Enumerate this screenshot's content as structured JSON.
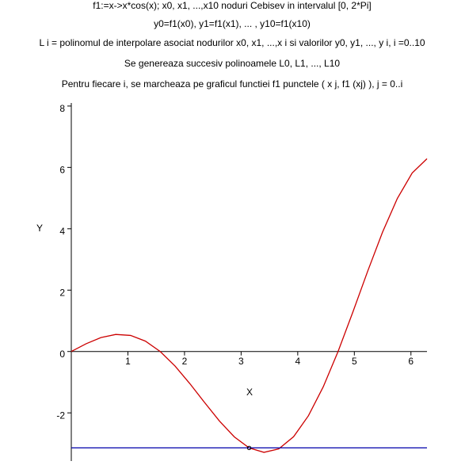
{
  "chart_data": {
    "type": "line",
    "title_lines": [
      "f1:=x->x*cos(x); x0,  x1,  ...,x10 noduri Cebisev in intervalul [0, 2*Pi]",
      "y0=f1(x0), y1=f1(x1), ... , y10=f1(x10)",
      "L i = polinomul de interpolare asociat nodurilor x0,  x1,  ...,x i si valorilor y0,  y1,  ..., y i,  i =0..10",
      "Se genereaza succesiv polinoamele L0, L1, ..., L10",
      "Pentru fiecare i, se marcheaza pe graficul functiei f1 punctele ( x j, f1 (xj) ),  j = 0..i"
    ],
    "xlabel": "X",
    "ylabel": "Y",
    "xlim": [
      0,
      6.2832
    ],
    "ylim": [
      -3.57,
      8.1
    ],
    "xticks": [
      1,
      2,
      3,
      4,
      5,
      6
    ],
    "yticks": [
      -2,
      0,
      2,
      4,
      6,
      8
    ],
    "series": [
      {
        "color": "#cc0000",
        "x": [
          0,
          0.2618,
          0.5236,
          0.7854,
          1.0472,
          1.309,
          1.5708,
          1.8326,
          2.0944,
          2.3562,
          2.618,
          2.8798,
          3.1416,
          3.4034,
          3.6652,
          3.927,
          4.1888,
          4.4506,
          4.7124,
          4.9742,
          5.236,
          5.4978,
          5.7596,
          6.0214,
          6.2832
        ],
        "values": [
          0,
          0.2529,
          0.4534,
          0.5554,
          0.5236,
          0.3388,
          0,
          -0.4743,
          -1.0472,
          -1.6661,
          -2.2672,
          -2.7817,
          -3.1416,
          -3.2874,
          -3.1742,
          -2.7768,
          -2.0944,
          -1.1518,
          0,
          1.2874,
          2.618,
          3.8875,
          4.9879,
          5.8161,
          6.2832
        ]
      },
      {
        "color": "#0000aa",
        "x": [
          0,
          6.2832
        ],
        "values": [
          -3.1416,
          -3.1416
        ]
      }
    ],
    "points": {
      "color": "#000000",
      "x": [
        3.1416
      ],
      "values": [
        -3.1416
      ]
    }
  }
}
